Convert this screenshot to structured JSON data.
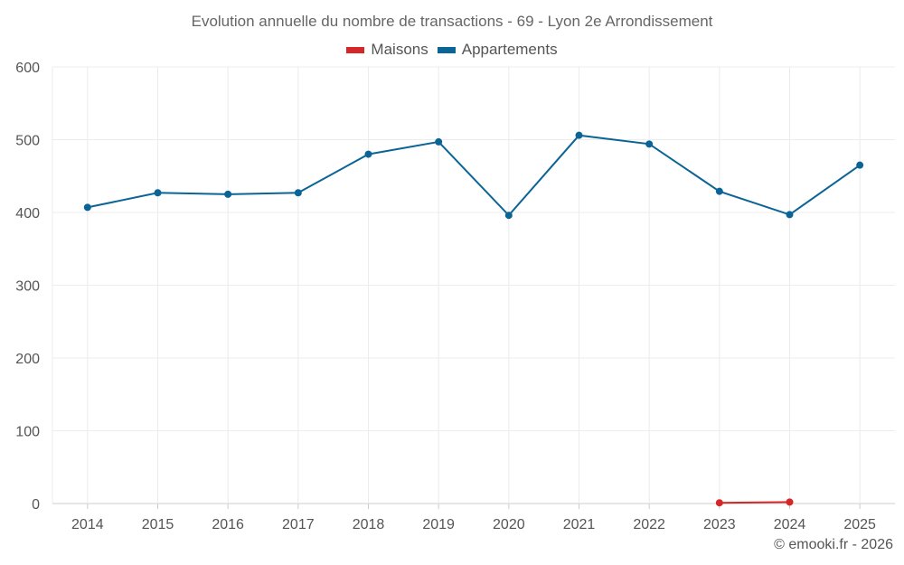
{
  "chart_data": {
    "type": "line",
    "title": "Evolution annuelle du nombre de transactions - 69 - Lyon 2e Arrondissement",
    "xlabel": "",
    "ylabel": "",
    "x": [
      "2014",
      "2015",
      "2016",
      "2017",
      "2018",
      "2019",
      "2020",
      "2021",
      "2022",
      "2023",
      "2024",
      "2025"
    ],
    "ylim": [
      0,
      600
    ],
    "yticks": [
      "0",
      "100",
      "200",
      "300",
      "400",
      "500",
      "600"
    ],
    "grid": true,
    "legend_position": "top-center",
    "series": [
      {
        "name": "Maisons",
        "color": "#d62728",
        "values": [
          null,
          null,
          null,
          null,
          null,
          null,
          null,
          null,
          null,
          1,
          2,
          null
        ]
      },
      {
        "name": "Appartements",
        "color": "#0b6496",
        "values": [
          407,
          427,
          425,
          427,
          480,
          497,
          396,
          506,
          494,
          429,
          397,
          465
        ]
      }
    ]
  },
  "credit": "© emooki.fr - 2026"
}
